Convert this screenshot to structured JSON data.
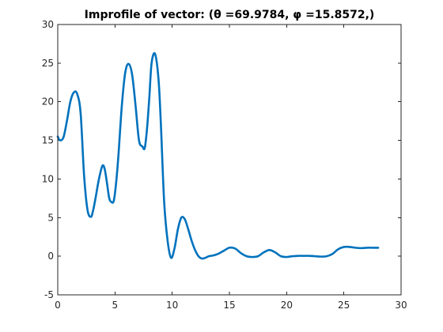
{
  "chart_data": {
    "type": "line",
    "title": "Improfile of vector: (θ =69.9784, φ =15.8572,)",
    "xlabel": "",
    "ylabel": "",
    "xlim": [
      0,
      30
    ],
    "ylim": [
      -5,
      30
    ],
    "xticks": [
      0,
      5,
      10,
      15,
      20,
      25,
      30
    ],
    "yticks": [
      -5,
      0,
      5,
      10,
      15,
      20,
      25,
      30
    ],
    "grid": false,
    "box": true,
    "colors": {
      "series": "#0072bd",
      "axes": "#262626"
    },
    "series": [
      {
        "name": "profile",
        "x": [
          0,
          0.2,
          0.5,
          0.8,
          1.1,
          1.4,
          1.7,
          2.0,
          2.3,
          2.6,
          2.9,
          3.1,
          3.3,
          3.6,
          3.9,
          4.1,
          4.3,
          4.5,
          4.7,
          4.9,
          5.1,
          5.3,
          5.6,
          5.9,
          6.2,
          6.5,
          6.8,
          7.1,
          7.4,
          7.6,
          7.8,
          8.0,
          8.2,
          8.5,
          8.8,
          9.0,
          9.3,
          9.6,
          9.9,
          10.2,
          10.5,
          10.8,
          11.1,
          11.4,
          11.7,
          12.0,
          12.3,
          12.6,
          12.9,
          13.2,
          13.6,
          14.0,
          14.5,
          15.0,
          15.5,
          16.0,
          16.5,
          17.0,
          17.5,
          18.0,
          18.5,
          19.0,
          19.5,
          20.0,
          20.5,
          21.0,
          21.5,
          22.0,
          22.5,
          23.0,
          23.5,
          24.0,
          24.5,
          25.0,
          25.5,
          26.0,
          26.5,
          27.0,
          27.5,
          28.0
        ],
        "y": [
          15.5,
          15.0,
          15.4,
          17.5,
          20.0,
          21.2,
          21.0,
          18.5,
          10.5,
          6.0,
          5.1,
          6.0,
          7.5,
          10.0,
          11.7,
          11.3,
          9.5,
          7.5,
          7.0,
          7.2,
          9.5,
          13.0,
          19.5,
          23.8,
          24.9,
          23.5,
          19.5,
          15.0,
          14.2,
          14.0,
          16.5,
          20.5,
          25.0,
          26.2,
          23.0,
          17.5,
          7.0,
          2.0,
          -0.2,
          1.0,
          3.5,
          5.0,
          4.8,
          3.5,
          2.0,
          0.8,
          0.0,
          -0.3,
          -0.2,
          0.0,
          0.1,
          0.3,
          0.7,
          1.1,
          1.0,
          0.4,
          0.0,
          -0.1,
          0.0,
          0.5,
          0.8,
          0.5,
          0.0,
          -0.1,
          0.0,
          0.05,
          0.05,
          0.05,
          0.0,
          -0.05,
          0.0,
          0.3,
          0.9,
          1.2,
          1.2,
          1.1,
          1.05,
          1.1,
          1.1,
          1.1
        ]
      }
    ]
  }
}
